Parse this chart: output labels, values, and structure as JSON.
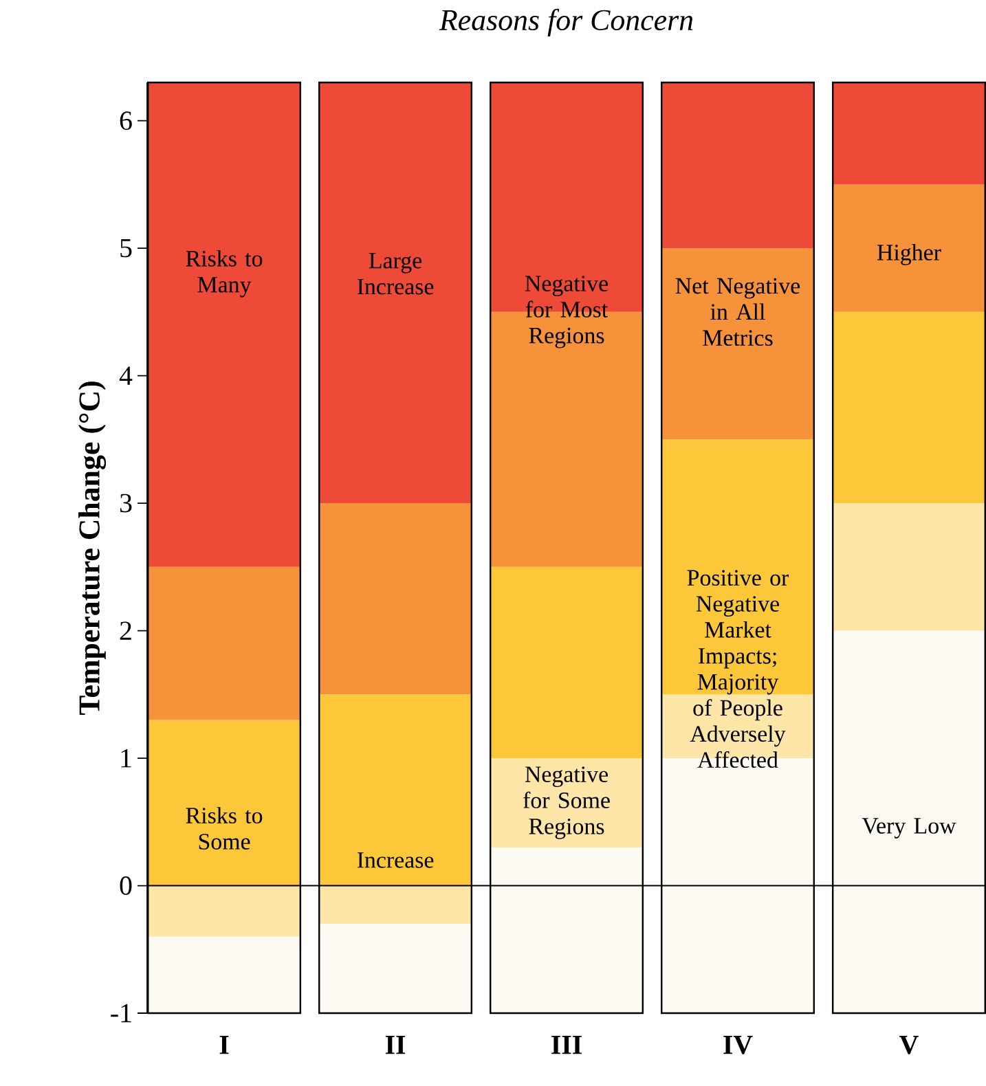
{
  "chart_data": {
    "type": "bar",
    "stacked": true,
    "title": "Reasons for Concern",
    "ylabel": "Temperature Change (°C)",
    "categories": [
      "I",
      "II",
      "III",
      "IV",
      "V"
    ],
    "series": [
      {
        "color": "#fdf9f3",
        "values": [
          null,
          null,
          0.3,
          1.0,
          2.0
        ]
      },
      {
        "color": "#fde6a8",
        "values": [
          -0.4,
          -0.3,
          0.7,
          0.5,
          1.0
        ]
      },
      {
        "color": "#fdf9f3",
        "values": [
          -0.6,
          -0.7,
          -1,
          -1,
          -1
        ]
      },
      {
        "color": "#fcc83a",
        "values": [
          1.3,
          1.5,
          1.5,
          2.0,
          1.5
        ]
      },
      {
        "color": "#f5923a",
        "values": [
          1.2,
          1.5,
          2.0,
          1.5,
          1.0
        ]
      },
      {
        "color": "#ee4a38",
        "values": [
          3.8,
          3.3,
          1.8,
          1.3,
          0.8
        ]
      }
    ],
    "ylim": [
      -1,
      6.3
    ],
    "yticks": [
      -1,
      0,
      1,
      2,
      3,
      4,
      5,
      6
    ],
    "ref_lines": [
      {
        "axis": "y",
        "value": 0
      }
    ],
    "annotations": [
      "Risks to Many",
      "Risks to Some",
      "Large Increase",
      "Increase",
      "Negative for Most Regions",
      "Negative for Some Regions",
      "Net Negative in All Metrics",
      "Positive or Negative Market Impacts; Majority of People Adversely Affected",
      "Higher",
      "Very Low"
    ]
  }
}
